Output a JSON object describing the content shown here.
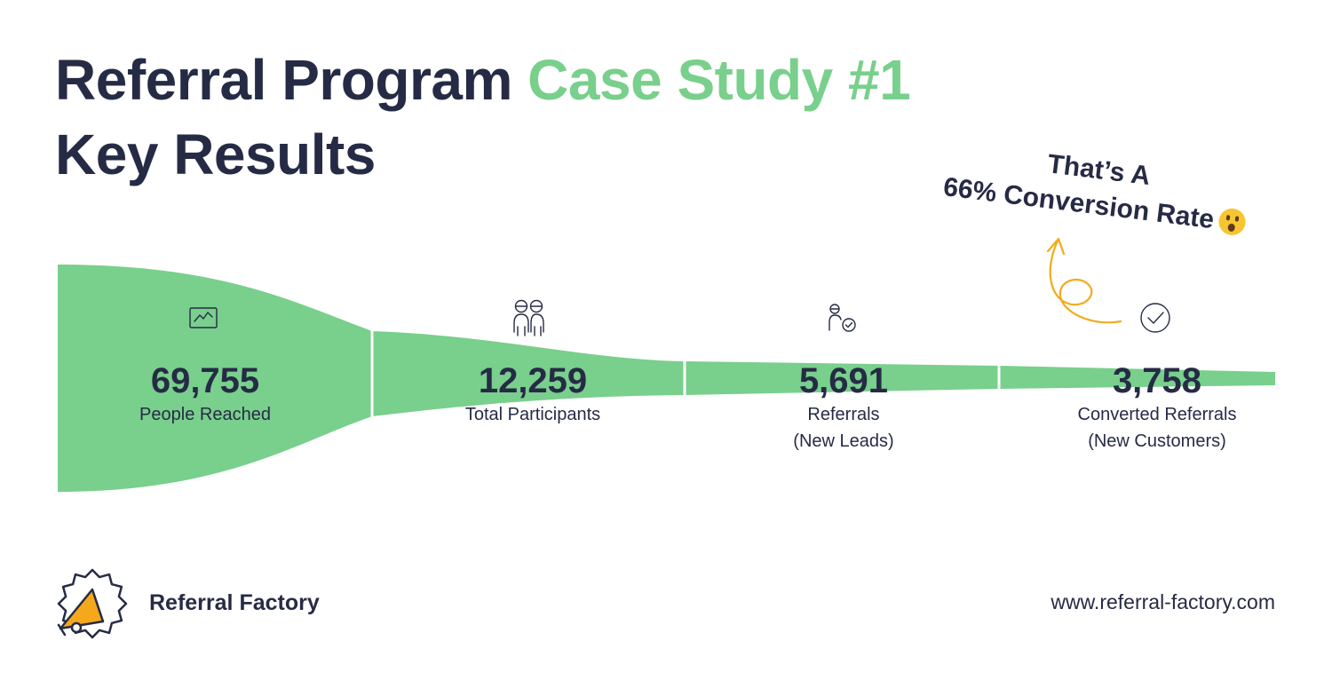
{
  "header": {
    "title_part1": "Referral Program ",
    "title_part2": "Case Study #1",
    "title_line2": "Key Results"
  },
  "colors": {
    "funnel": "#79cf8c",
    "accent_green": "#79cf8c",
    "navy": "#262b45",
    "arrow": "#f2ab1b",
    "logo_orange": "#f5a81c"
  },
  "chart_data": {
    "type": "funnel",
    "title": "Referral Program Case Study #1 Key Results",
    "stages": [
      {
        "value": 69755,
        "value_label": "69,755",
        "label_line1": "People Reached",
        "label_line2": "",
        "icon": "line-chart-icon"
      },
      {
        "value": 12259,
        "value_label": "12,259",
        "label_line1": "Total Participants",
        "label_line2": "",
        "icon": "two-people-icon"
      },
      {
        "value": 5691,
        "value_label": "5,691",
        "label_line1": "Referrals",
        "label_line2": "(New Leads)",
        "icon": "person-check-icon"
      },
      {
        "value": 3758,
        "value_label": "3,758",
        "label_line1": "Converted Referrals",
        "label_line2": "(New Customers)",
        "icon": "circle-check-icon"
      }
    ]
  },
  "callout": {
    "line1": "That’s A",
    "line2": "66% Conversion Rate",
    "emoji": "surprised-face-icon"
  },
  "footer": {
    "brand": "Referral Factory",
    "url": "www.referral-factory.com"
  }
}
